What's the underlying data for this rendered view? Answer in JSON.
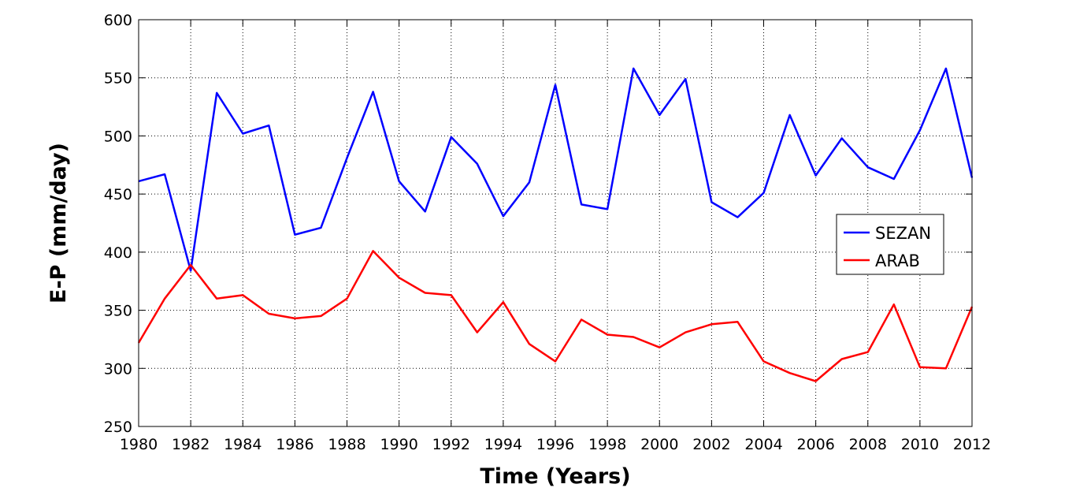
{
  "chart_data": {
    "type": "line",
    "xlabel": "Time (Years)",
    "ylabel": "E-P (mm/day)",
    "xlim": [
      1980,
      2012
    ],
    "ylim": [
      250,
      600
    ],
    "x_ticks": [
      1980,
      1982,
      1984,
      1986,
      1988,
      1990,
      1992,
      1994,
      1996,
      1998,
      2000,
      2002,
      2004,
      2006,
      2008,
      2010,
      2012
    ],
    "y_ticks": [
      250,
      300,
      350,
      400,
      450,
      500,
      550,
      600
    ],
    "grid": true,
    "legend_position": "right",
    "x": [
      1980,
      1981,
      1982,
      1983,
      1984,
      1985,
      1986,
      1987,
      1988,
      1989,
      1990,
      1991,
      1992,
      1993,
      1994,
      1995,
      1996,
      1997,
      1998,
      1999,
      2000,
      2001,
      2002,
      2003,
      2004,
      2005,
      2006,
      2007,
      2008,
      2009,
      2010,
      2011,
      2012
    ],
    "series": [
      {
        "name": "SEZAN",
        "color": "#0000ff",
        "values": [
          461,
          467,
          384,
          537,
          502,
          509,
          415,
          421,
          481,
          538,
          461,
          435,
          499,
          476,
          431,
          460,
          544,
          441,
          437,
          558,
          518,
          549,
          443,
          430,
          451,
          518,
          466,
          498,
          473,
          463,
          505,
          558,
          464
        ]
      },
      {
        "name": "ARAB",
        "color": "#ff0000",
        "values": [
          322,
          360,
          389,
          360,
          363,
          347,
          343,
          345,
          360,
          401,
          378,
          365,
          363,
          331,
          357,
          321,
          306,
          342,
          329,
          327,
          318,
          331,
          338,
          340,
          306,
          296,
          289,
          308,
          314,
          355,
          301,
          300,
          353
        ]
      }
    ]
  }
}
